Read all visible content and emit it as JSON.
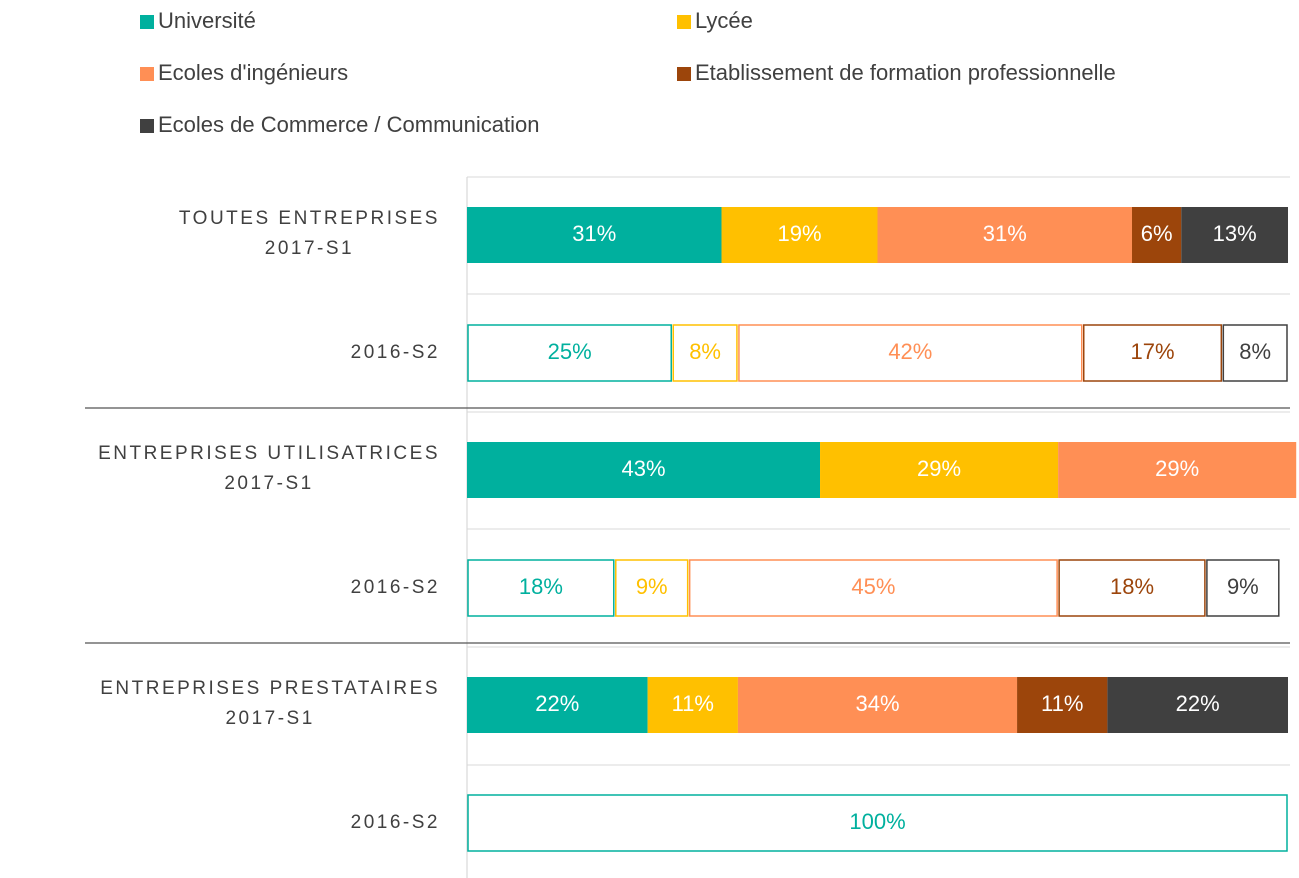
{
  "chart_data": {
    "type": "stacked_bar_horizontal",
    "categories": [
      [
        "TOUTES ENTREPRISES",
        "2017-S1"
      ],
      [
        "2016-S2"
      ],
      [
        "ENTREPRISES UTILISATRICES",
        "2017-S1"
      ],
      [
        "2016-S2"
      ],
      [
        "ENTREPRISES PRESTATAIRES",
        "2017-S1"
      ],
      [
        "2016-S2"
      ]
    ],
    "bar_styles": [
      "filled",
      "outline",
      "filled",
      "outline",
      "filled",
      "outline"
    ],
    "xlim": [
      0,
      100
    ],
    "series": [
      {
        "name": "Université",
        "color": "#00b09e",
        "values": [
          31,
          25,
          43,
          18,
          22,
          100
        ],
        "value_labels": [
          "31%",
          "25%",
          "43%",
          "18%",
          "22%",
          "100%"
        ]
      },
      {
        "name": "Lycée",
        "color": "#ffc000",
        "values": [
          19,
          8,
          29,
          9,
          11,
          null
        ],
        "value_labels": [
          "19%",
          "8%",
          "29%",
          "9%",
          "11%",
          null
        ]
      },
      {
        "name": "Ecoles d'ingénieurs",
        "color": "#ff8f55",
        "values": [
          31,
          42,
          29,
          45,
          34,
          null
        ],
        "value_labels": [
          "31%",
          "42%",
          "29%",
          "45%",
          "34%",
          null
        ]
      },
      {
        "name": "Etablissement de formation professionnelle",
        "color": "#9c450b",
        "values": [
          6,
          17,
          null,
          18,
          11,
          null
        ],
        "value_labels": [
          "6%",
          "17%",
          null,
          "18%",
          "11%",
          null
        ]
      },
      {
        "name": "Ecoles de Commerce / Communication",
        "color": "#404040",
        "values": [
          13,
          8,
          null,
          9,
          22,
          null
        ],
        "value_labels": [
          "13%",
          "8%",
          null,
          "9%",
          "22%",
          null
        ]
      }
    ]
  }
}
